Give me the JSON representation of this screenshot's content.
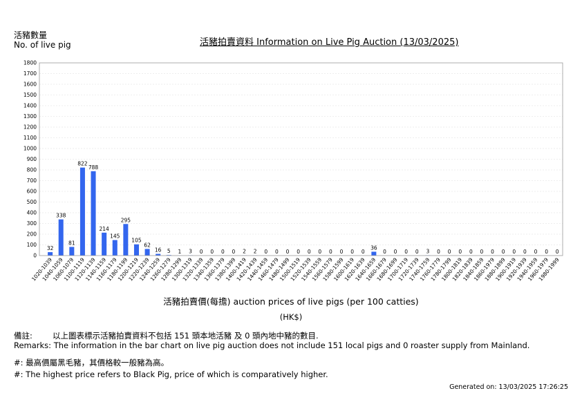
{
  "header": {
    "ylabel_zh": "活豬數量",
    "ylabel_en": "No. of live pig",
    "title": "活豬拍賣資料 Information on Live Pig Auction (13/03/2025)"
  },
  "footer": {
    "xlabel": "活豬拍賣價(每擔) auction prices of live pigs (per 100 catties)",
    "xunit": "(HK$)",
    "remark_zh_label": "備註:",
    "remark_zh": "以上圖表標示活豬拍賣資料不包括 151 頭本地活豬 及 0 頭內地中豬的數目.",
    "remark_en": "Remarks: The information in the bar chart on live pig auction does not include 151 local pigs and 0 roaster supply from Mainland.",
    "note_zh": "#: 最高價屬黑毛豬，其價格較一般豬為高。",
    "note_en": "#: The highest price refers to Black Pig, price of which is comparatively higher.",
    "generated": "Generated on: 13/03/2025 17:26:25"
  },
  "chart_data": {
    "type": "bar",
    "categories": [
      "1020-1039",
      "1040-1059",
      "1060-1079",
      "1100-1119",
      "1120-1139",
      "1140-1159",
      "1160-1179",
      "1180-1199",
      "1200-1219",
      "1220-1239",
      "1240-1259",
      "1260-1279",
      "1280-1299",
      "1300-1319",
      "1320-1339",
      "1340-1359",
      "1360-1379",
      "1380-1399",
      "1400-1419",
      "1420-1439",
      "1440-1459",
      "1460-1479",
      "1480-1499",
      "1500-1519",
      "1520-1539",
      "1540-1559",
      "1560-1579",
      "1580-1599",
      "1600-1619",
      "1620-1639",
      "1640-1659",
      "1660-1679",
      "1680-1699",
      "1700-1719",
      "1720-1739",
      "1740-1759",
      "1760-1779",
      "1780-1799",
      "1800-1819",
      "1820-1839",
      "1840-1859",
      "1860-1979",
      "1880-1899",
      "1900-1919",
      "1920-1939",
      "1940-1959",
      "1960-1979",
      "1980-1999"
    ],
    "values": [
      32,
      338,
      81,
      822,
      788,
      214,
      145,
      295,
      105,
      62,
      16,
      5,
      1,
      3,
      0,
      0,
      0,
      0,
      2,
      2,
      0,
      0,
      0,
      0,
      0,
      0,
      0,
      0,
      0,
      0,
      36,
      0,
      0,
      0,
      0,
      3,
      0,
      0,
      0,
      0,
      0,
      0,
      0,
      0,
      0,
      0,
      0,
      0
    ],
    "ylim": [
      0,
      1800
    ],
    "yticks": [
      0,
      100,
      200,
      300,
      400,
      500,
      600,
      700,
      800,
      900,
      1000,
      1100,
      1200,
      1300,
      1400,
      1500,
      1600,
      1700,
      1800
    ],
    "grid": true,
    "bar_color": "#3366ee"
  }
}
